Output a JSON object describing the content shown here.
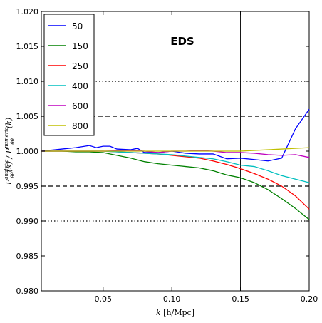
{
  "chart_data": {
    "type": "line",
    "annotation": "EDS",
    "xlabel": "k [h/Mpc]",
    "ylabel": "P_θθ^analytic(k) / P_θθ^numeric(k)",
    "xlim": [
      0.005,
      0.2
    ],
    "ylim": [
      0.98,
      1.02
    ],
    "xticks": [
      0.05,
      0.1,
      0.15,
      0.2
    ],
    "xtick_labels": [
      "0.05",
      "0.10",
      "0.15",
      "0.20"
    ],
    "yticks": [
      0.98,
      0.985,
      0.99,
      0.995,
      1.0,
      1.005,
      1.01,
      1.015,
      1.02
    ],
    "ytick_labels": [
      "0.980",
      "0.985",
      "0.990",
      "0.995",
      "1.000",
      "1.005",
      "1.010",
      "1.015",
      "1.020"
    ],
    "hlines": [
      {
        "y": 1.005,
        "style": "dashed"
      },
      {
        "y": 0.995,
        "style": "dashed"
      },
      {
        "y": 1.01,
        "style": "dotted"
      },
      {
        "y": 0.99,
        "style": "dotted"
      }
    ],
    "vlines": [
      {
        "x": 0.15,
        "style": "solid"
      }
    ],
    "legend_position": "top-left",
    "series": [
      {
        "name": "50",
        "color": "#0000ff",
        "x": [
          0.005,
          0.02,
          0.03,
          0.04,
          0.045,
          0.05,
          0.055,
          0.06,
          0.07,
          0.075,
          0.08,
          0.09,
          0.1,
          0.11,
          0.12,
          0.13,
          0.14,
          0.15,
          0.16,
          0.165,
          0.17,
          0.175,
          0.18,
          0.19,
          0.2
        ],
        "y": [
          1.0,
          1.0003,
          1.0005,
          1.0008,
          1.0005,
          1.0007,
          1.0007,
          1.0003,
          1.0002,
          1.0004,
          0.9998,
          0.9998,
          1.0,
          0.9997,
          0.9996,
          0.9996,
          0.9989,
          0.999,
          0.9988,
          0.9987,
          0.9986,
          0.9988,
          0.999,
          1.0032,
          1.006
        ]
      },
      {
        "name": "150",
        "color": "#008000",
        "x": [
          0.005,
          0.02,
          0.03,
          0.04,
          0.05,
          0.06,
          0.07,
          0.08,
          0.09,
          0.1,
          0.11,
          0.12,
          0.13,
          0.14,
          0.15,
          0.16,
          0.17,
          0.18,
          0.19,
          0.2
        ],
        "y": [
          1.0,
          1.0,
          0.9999,
          0.9999,
          0.9998,
          0.9994,
          0.999,
          0.9985,
          0.9982,
          0.998,
          0.9978,
          0.9976,
          0.9972,
          0.9966,
          0.9962,
          0.9955,
          0.9945,
          0.9932,
          0.9918,
          0.9902
        ]
      },
      {
        "name": "250",
        "color": "#ff0000",
        "x": [
          0.005,
          0.02,
          0.03,
          0.04,
          0.05,
          0.06,
          0.07,
          0.08,
          0.09,
          0.1,
          0.11,
          0.12,
          0.13,
          0.14,
          0.15,
          0.16,
          0.17,
          0.18,
          0.19,
          0.2
        ],
        "y": [
          1.0,
          1.0,
          1.0,
          1.0,
          1.0,
          0.9999,
          0.9998,
          0.9997,
          0.9996,
          0.9994,
          0.9992,
          0.999,
          0.9986,
          0.9981,
          0.9975,
          0.9968,
          0.996,
          0.995,
          0.9936,
          0.9917
        ]
      },
      {
        "name": "400",
        "color": "#00bfbf",
        "x": [
          0.005,
          0.03,
          0.05,
          0.07,
          0.08,
          0.09,
          0.1,
          0.11,
          0.12,
          0.13,
          0.14,
          0.15,
          0.16,
          0.17,
          0.18,
          0.19,
          0.2
        ],
        "y": [
          1.0,
          1.0,
          1.0,
          0.9998,
          0.9997,
          0.9996,
          0.9995,
          0.9993,
          0.9991,
          0.9989,
          0.9985,
          0.998,
          0.9978,
          0.9972,
          0.9965,
          0.996,
          0.9955
        ]
      },
      {
        "name": "600",
        "color": "#bf00bf",
        "x": [
          0.005,
          0.03,
          0.05,
          0.07,
          0.08,
          0.09,
          0.1,
          0.11,
          0.12,
          0.13,
          0.14,
          0.15,
          0.16,
          0.17,
          0.18,
          0.19,
          0.2
        ],
        "y": [
          1.0,
          1.0,
          1.0,
          1.0001,
          1.0,
          0.9998,
          1.0,
          1.0,
          1.0001,
          1.0,
          0.9998,
          0.9998,
          0.9997,
          0.9995,
          0.9994,
          0.9995,
          0.9991
        ]
      },
      {
        "name": "800",
        "color": "#bfbf00",
        "x": [
          0.005,
          0.05,
          0.1,
          0.15,
          0.17,
          0.2
        ],
        "y": [
          1.0,
          1.0,
          1.0,
          1.0,
          1.0002,
          1.0005
        ]
      }
    ]
  }
}
